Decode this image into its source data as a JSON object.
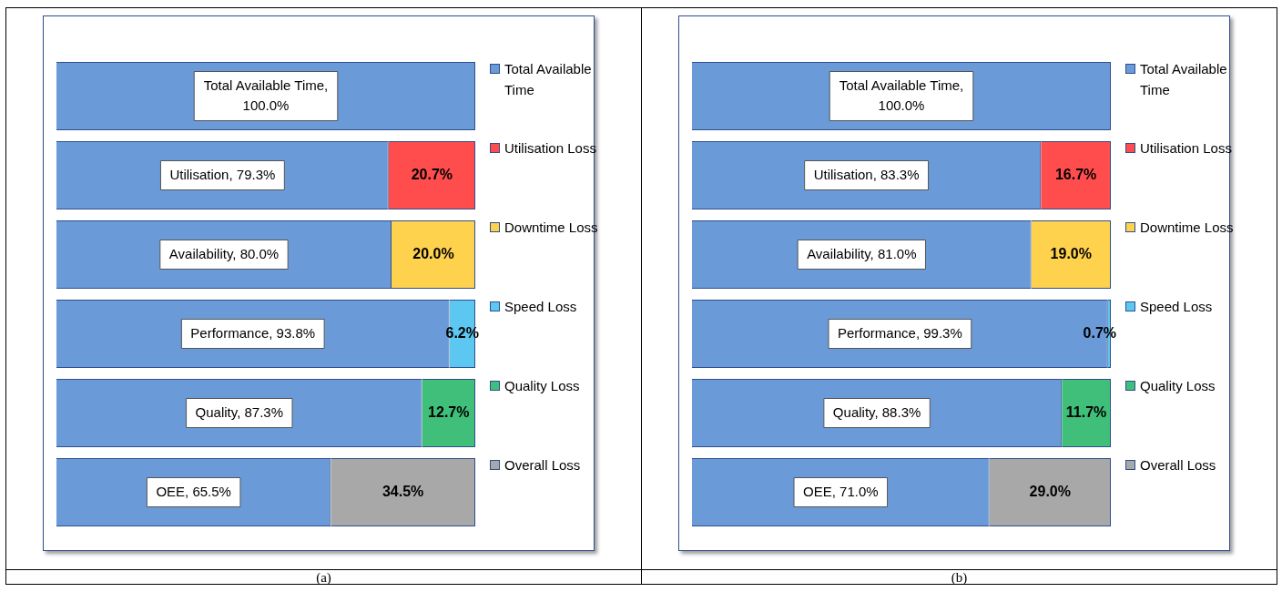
{
  "chart_data": [
    {
      "type": "bar",
      "orientation": "horizontal",
      "stacked": true,
      "categories": [
        null,
        null,
        null,
        null,
        null,
        null
      ],
      "xlim": [
        0,
        100
      ],
      "tick_labels": false,
      "grid": false,
      "legend": "right",
      "annotations": [
        "(a)"
      ],
      "series": [
        {
          "name": "Total Available Time",
          "color": "#6a9bd8",
          "values": [
            100,
            79.3,
            80.0,
            93.8,
            87.3,
            65.5
          ],
          "value_labels": [
            "Total Available Time, 100.0%",
            "Utilisation, 79.3%",
            "Availability, 80.0%",
            "Performance, 93.8%",
            "Quality, 87.3%",
            "OEE, 65.5%"
          ]
        },
        {
          "name": "Utilisation Loss",
          "color": "#ff4d4d",
          "values": [
            null,
            20.7,
            null,
            null,
            null,
            null
          ],
          "value_labels": [
            null,
            "20.7%",
            null,
            null,
            null,
            null
          ]
        },
        {
          "name": "Downtime Loss",
          "color": "#ffd24d",
          "values": [
            null,
            null,
            20.0,
            null,
            null,
            null
          ],
          "value_labels": [
            null,
            null,
            "20.0%",
            null,
            null,
            null
          ]
        },
        {
          "name": "Speed Loss",
          "color": "#5cc8f2",
          "values": [
            null,
            null,
            null,
            6.2,
            null,
            null
          ],
          "value_labels": [
            null,
            null,
            null,
            "6.2%",
            null,
            null
          ]
        },
        {
          "name": "Quality Loss",
          "color": "#3fbf7a",
          "values": [
            null,
            null,
            null,
            null,
            12.7,
            null
          ],
          "value_labels": [
            null,
            null,
            null,
            null,
            "12.7%",
            null
          ]
        },
        {
          "name": "Overall Loss",
          "color": "#a8a8a8",
          "values": [
            null,
            null,
            null,
            null,
            null,
            34.5
          ],
          "value_labels": [
            null,
            null,
            null,
            null,
            null,
            "34.5%"
          ]
        }
      ]
    },
    {
      "type": "bar",
      "orientation": "horizontal",
      "stacked": true,
      "categories": [
        null,
        null,
        null,
        null,
        null,
        null
      ],
      "xlim": [
        0,
        100
      ],
      "tick_labels": false,
      "grid": false,
      "legend": "right",
      "annotations": [
        "(b)"
      ],
      "series": [
        {
          "name": "Total Available Time",
          "color": "#6a9bd8",
          "values": [
            100,
            83.3,
            81.0,
            99.3,
            88.3,
            71.0
          ],
          "value_labels": [
            "Total Available Time, 100.0%",
            "Utilisation, 83.3%",
            "Availability, 81.0%",
            "Performance, 99.3%",
            "Quality, 88.3%",
            "OEE, 71.0%"
          ]
        },
        {
          "name": "Utilisation Loss",
          "color": "#ff4d4d",
          "values": [
            null,
            16.7,
            null,
            null,
            null,
            null
          ],
          "value_labels": [
            null,
            "16.7%",
            null,
            null,
            null,
            null
          ]
        },
        {
          "name": "Downtime Loss",
          "color": "#ffd24d",
          "values": [
            null,
            null,
            19.0,
            null,
            null,
            null
          ],
          "value_labels": [
            null,
            null,
            "19.0%",
            null,
            null,
            null
          ]
        },
        {
          "name": "Speed Loss",
          "color": "#5cc8f2",
          "values": [
            null,
            null,
            null,
            0.7,
            null,
            null
          ],
          "value_labels": [
            null,
            null,
            null,
            "0.7%",
            null,
            null
          ]
        },
        {
          "name": "Quality Loss",
          "color": "#3fbf7a",
          "values": [
            null,
            null,
            null,
            null,
            11.7,
            null
          ],
          "value_labels": [
            null,
            null,
            null,
            null,
            "11.7%",
            null
          ]
        },
        {
          "name": "Overall Loss",
          "color": "#a8a8a8",
          "values": [
            null,
            null,
            null,
            null,
            null,
            29.0
          ],
          "value_labels": [
            null,
            null,
            null,
            null,
            null,
            "29.0%"
          ]
        }
      ]
    }
  ]
}
